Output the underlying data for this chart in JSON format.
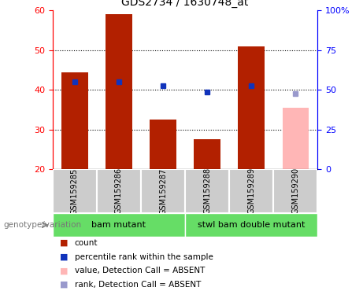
{
  "title": "GDS2734 / 1630748_at",
  "samples": [
    "GSM159285",
    "GSM159286",
    "GSM159287",
    "GSM159288",
    "GSM159289",
    "GSM159290"
  ],
  "count_values": [
    44.5,
    59.0,
    32.5,
    27.5,
    51.0,
    null
  ],
  "rank_values": [
    42.0,
    42.0,
    41.0,
    39.5,
    41.0,
    null
  ],
  "absent_value": 35.5,
  "absent_rank": 39.0,
  "absent_index": 5,
  "ylim_left": [
    20,
    60
  ],
  "ylim_right": [
    0,
    100
  ],
  "yticks_left": [
    20,
    30,
    40,
    50,
    60
  ],
  "yticks_right": [
    0,
    25,
    50,
    75,
    100
  ],
  "ytick_labels_right": [
    "0",
    "25",
    "50",
    "75",
    "100%"
  ],
  "bar_color": "#b22000",
  "rank_color": "#1133bb",
  "absent_bar_color": "#ffb6b6",
  "absent_rank_color": "#9999cc",
  "group1_label": "bam mutant",
  "group2_label": "stwl bam double mutant",
  "group1_indices": [
    0,
    1,
    2
  ],
  "group2_indices": [
    3,
    4,
    5
  ],
  "group1_bg": "#66dd66",
  "group2_bg": "#66dd66",
  "sample_bg": "#cccccc",
  "legend_items": [
    {
      "color": "#b22000",
      "label": "count"
    },
    {
      "color": "#1133bb",
      "label": "percentile rank within the sample"
    },
    {
      "color": "#ffb6b6",
      "label": "value, Detection Call = ABSENT"
    },
    {
      "color": "#9999cc",
      "label": "rank, Detection Call = ABSENT"
    }
  ],
  "genotype_label": "genotype/variation",
  "title_fontsize": 10,
  "tick_fontsize": 8,
  "legend_fontsize": 7.5,
  "sample_fontsize": 7
}
